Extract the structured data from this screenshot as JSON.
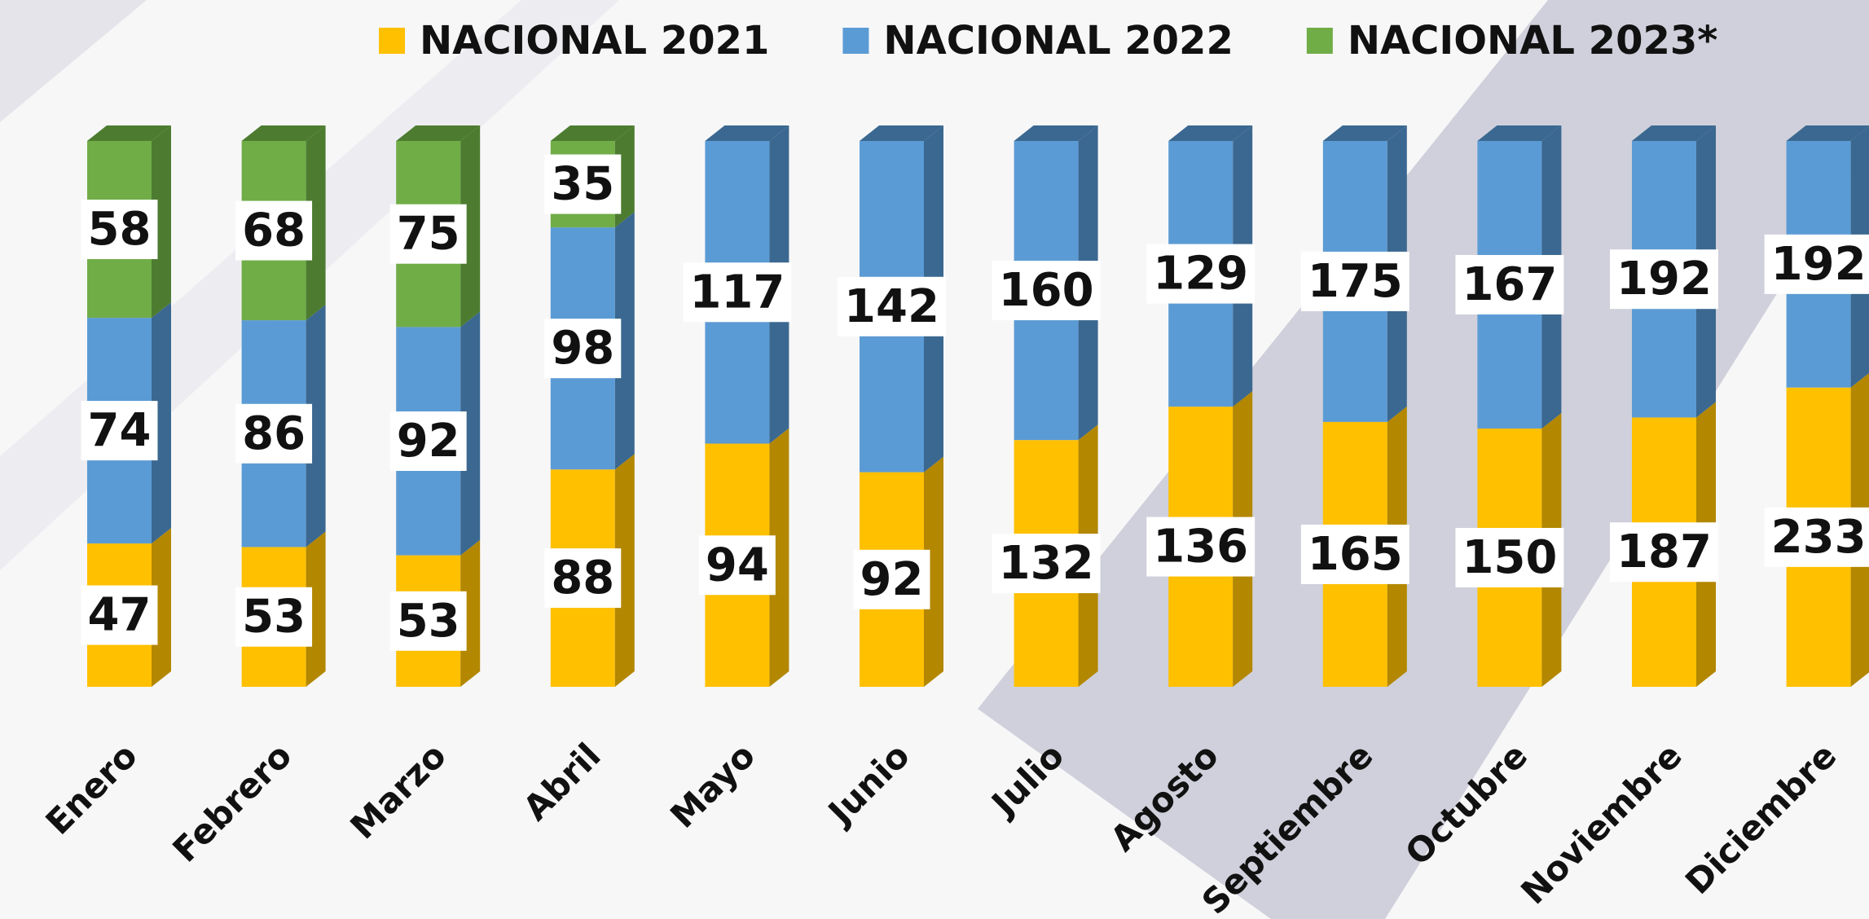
{
  "chart_data": {
    "type": "bar",
    "stacking": "percent",
    "three_d": true,
    "legend": "top",
    "categories": [
      "Enero",
      "Febrero",
      "Marzo",
      "Abril",
      "Mayo",
      "Junio",
      "Julio",
      "Agosto",
      "Septiembre",
      "Octubre",
      "Noviembre",
      "Diciembre"
    ],
    "series": [
      {
        "name": "NACIONAL 2021",
        "color": "#ffc000",
        "side_color": "#b38700",
        "values": [
          47,
          53,
          53,
          88,
          94,
          92,
          132,
          136,
          165,
          150,
          187,
          233
        ]
      },
      {
        "name": "NACIONAL 2022",
        "color": "#5b9bd5",
        "side_color": "#3b6890",
        "values": [
          74,
          86,
          92,
          98,
          117,
          142,
          160,
          129,
          175,
          167,
          192,
          192
        ]
      },
      {
        "name": "NACIONAL 2023*",
        "color": "#70ad47",
        "side_color": "#4d7c30",
        "values": [
          58,
          68,
          75,
          35,
          null,
          null,
          null,
          null,
          null,
          null,
          null,
          null
        ]
      }
    ]
  }
}
